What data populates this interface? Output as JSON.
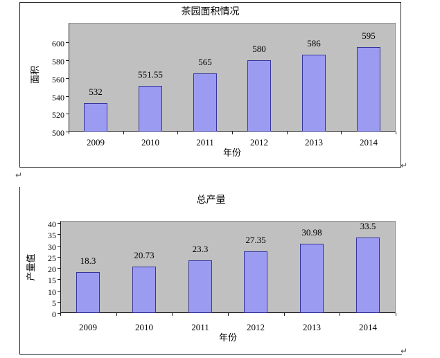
{
  "page": {
    "background_color": "#ffffff",
    "frame_border_color": "#2a2a2a",
    "paragraph_mark": "↵"
  },
  "chart_data": [
    {
      "type": "bar",
      "title": "茶园面积情况",
      "xlabel": "年份",
      "ylabel": "面积",
      "categories": [
        "2009",
        "2010",
        "2011",
        "2012",
        "2013",
        "2014"
      ],
      "values": [
        532,
        551.55,
        565,
        580,
        586,
        595
      ],
      "value_labels": [
        "532",
        "551.55",
        "565",
        "580",
        "586",
        "595"
      ],
      "yticks": [
        500,
        520,
        540,
        560,
        580,
        600
      ],
      "ylim": [
        500,
        622
      ],
      "grid": false,
      "legend": "none",
      "bar_color": "#9b9bf2",
      "bar_border_color": "#35359b",
      "plot_bg_color": "#c0c0c0"
    },
    {
      "type": "bar",
      "title": "总产量",
      "xlabel": "年份",
      "ylabel": "产量值",
      "categories": [
        "2009",
        "2010",
        "2011",
        "2012",
        "2013",
        "2014"
      ],
      "values": [
        18.3,
        20.73,
        23.3,
        27.35,
        30.98,
        33.5
      ],
      "value_labels": [
        "18.3",
        "20.73",
        "23.3",
        "27.35",
        "30.98",
        "33.5"
      ],
      "yticks": [
        0,
        5,
        10,
        15,
        20,
        25,
        30,
        35,
        40
      ],
      "ylim": [
        0,
        41
      ],
      "grid": false,
      "legend": "none",
      "bar_color": "#9b9bf2",
      "bar_border_color": "#35359b",
      "plot_bg_color": "#c0c0c0"
    }
  ]
}
